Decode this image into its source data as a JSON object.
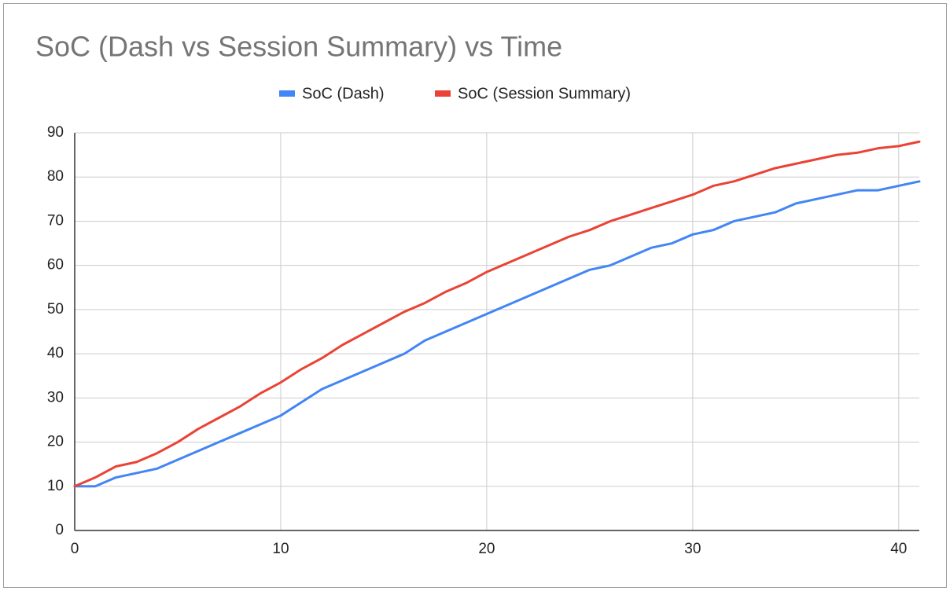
{
  "chart_data": {
    "type": "line",
    "title": "SoC (Dash vs Session Summary) vs Time",
    "x": [
      0,
      1,
      2,
      3,
      4,
      5,
      6,
      7,
      8,
      9,
      10,
      11,
      12,
      13,
      14,
      15,
      16,
      17,
      18,
      19,
      20,
      21,
      22,
      23,
      24,
      25,
      26,
      27,
      28,
      29,
      30,
      31,
      32,
      33,
      34,
      35,
      36,
      37,
      38,
      39,
      40,
      41
    ],
    "series": [
      {
        "name": "SoC (Dash)",
        "color": "#4285f4",
        "values": [
          10,
          10,
          12,
          13,
          14,
          16,
          18,
          20,
          22,
          24,
          26,
          29,
          32,
          34,
          36,
          38,
          40,
          43,
          45,
          47,
          49,
          51,
          53,
          55,
          57,
          59,
          60,
          62,
          64,
          65,
          67,
          68,
          70,
          71,
          72,
          74,
          75,
          76,
          77,
          77,
          78,
          79
        ]
      },
      {
        "name": "SoC (Session Summary)",
        "color": "#ea4335",
        "values": [
          10,
          12,
          14.5,
          15.5,
          17.5,
          20,
          23,
          25.5,
          28,
          31,
          33.5,
          36.5,
          39,
          42,
          44.5,
          47,
          49.5,
          51.5,
          54,
          56,
          58.5,
          60.5,
          62.5,
          64.5,
          66.5,
          68,
          70,
          71.5,
          73,
          74.5,
          76,
          78,
          79,
          80.5,
          82,
          83,
          84,
          85,
          85.5,
          86.5,
          87,
          88
        ]
      }
    ],
    "xlim": [
      0,
      41
    ],
    "xticks": [
      0,
      10,
      20,
      30,
      40
    ],
    "ylim": [
      0,
      90
    ],
    "yticks": [
      0,
      10,
      20,
      30,
      40,
      50,
      60,
      70,
      80,
      90
    ],
    "grid": true,
    "legend": "top"
  }
}
